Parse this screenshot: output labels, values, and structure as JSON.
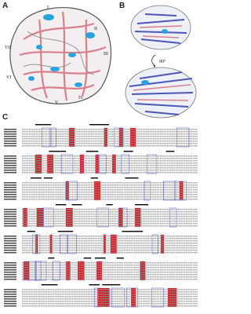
{
  "panels": [
    {
      "label": "A",
      "annotations": [
        "I",
        "II",
        "III",
        "IV",
        "V",
        "VI",
        "VII"
      ]
    },
    {
      "label": "B",
      "annotations": [
        "90°"
      ]
    },
    {
      "label": "C"
    }
  ]
}
